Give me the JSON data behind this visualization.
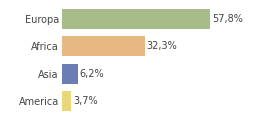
{
  "categories": [
    "Europa",
    "Africa",
    "Asia",
    "America"
  ],
  "values": [
    57.8,
    32.3,
    6.2,
    3.7
  ],
  "labels": [
    "57,8%",
    "32,3%",
    "6,2%",
    "3,7%"
  ],
  "bar_colors": [
    "#a8bc8a",
    "#e8b882",
    "#6b7db3",
    "#e8d87a"
  ],
  "background_color": "#ffffff",
  "xlim": [
    0,
    72
  ],
  "bar_height": 0.72,
  "label_fontsize": 7.0,
  "category_fontsize": 7.0,
  "grid_color": "#dddddd"
}
